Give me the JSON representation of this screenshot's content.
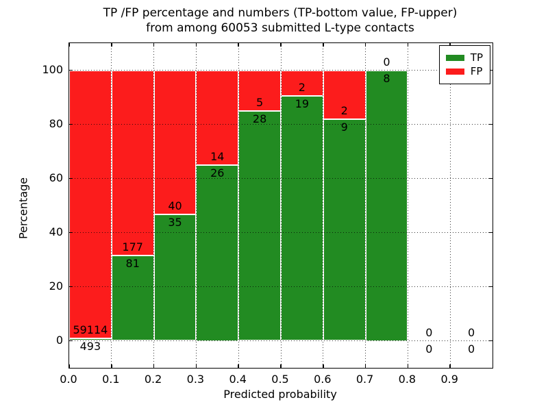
{
  "header": {
    "title_line1": "TP /FP percentage and numbers (TP-bottom value, FP-upper)",
    "title_line2": "from among 60053 submitted L-type contacts"
  },
  "axes": {
    "ylabel": "Percentage",
    "xlabel": "Predicted probability",
    "yticks": [
      0,
      20,
      40,
      60,
      80,
      100
    ],
    "xtick_labels": [
      "0.0",
      "0.1",
      "0.2",
      "0.3",
      "0.4",
      "0.5",
      "0.6",
      "0.7",
      "0.8",
      "0.9"
    ],
    "ylim": [
      -10,
      110
    ],
    "xlim": [
      0.0,
      1.0
    ]
  },
  "legend": {
    "position": "upper right",
    "items": [
      {
        "label": "TP",
        "color": "#228b22"
      },
      {
        "label": "FP",
        "color": "#fc1c1c"
      }
    ]
  },
  "colors": {
    "tp_green": "#228b22",
    "fp_red": "#fc1c1c",
    "grid": "#000000",
    "bar_edge": "#ffffff"
  },
  "chart_data": {
    "type": "bar",
    "stacked": true,
    "normalized": "percent of bin total",
    "title": "TP /FP percentage and numbers (TP-bottom value, FP-upper) from among 60053 submitted L-type contacts",
    "xlabel": "Predicted probability",
    "ylabel": "Percentage",
    "grid": "dotted",
    "legend_position": "upper right",
    "ylim": [
      -10,
      110
    ],
    "xlim": [
      0.0,
      1.0
    ],
    "bin_width": 0.1,
    "bin_starts": [
      0.0,
      0.1,
      0.2,
      0.3,
      0.4,
      0.5,
      0.6,
      0.7,
      0.8,
      0.9
    ],
    "categories": [
      "0.0-0.1",
      "0.1-0.2",
      "0.2-0.3",
      "0.3-0.4",
      "0.4-0.5",
      "0.5-0.6",
      "0.6-0.7",
      "0.7-0.8",
      "0.8-0.9",
      "0.9-1.0"
    ],
    "series": [
      {
        "name": "TP",
        "color": "#228b22",
        "counts": [
          493,
          81,
          35,
          26,
          28,
          19,
          9,
          8,
          0,
          0
        ]
      },
      {
        "name": "FP",
        "color": "#fc1c1c",
        "counts": [
          59114,
          177,
          40,
          14,
          5,
          2,
          2,
          0,
          0,
          0
        ]
      }
    ],
    "tp_percent_of_bin": [
      0.83,
      31.4,
      46.67,
      65.0,
      84.85,
      90.48,
      81.82,
      100.0,
      0,
      0
    ]
  }
}
